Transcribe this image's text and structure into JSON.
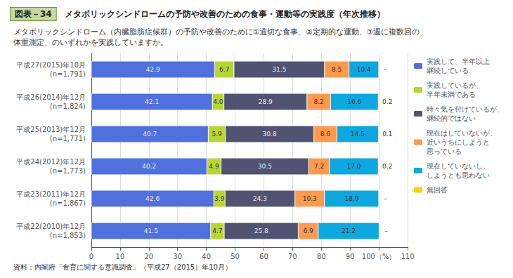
{
  "chart_data": {
    "type": "bar",
    "orientation": "horizontal",
    "stacked": true,
    "title_label": "図表－34",
    "title": "メタボリックシンドロームの予防や改善のための食事・運動等の実践度（年次推移）",
    "subtitle": [
      "メタボリックシンドローム（内臓脂肪症候群）の予防や改善のために①適切な食事、②定期的な運動、③週に複数回の",
      "体重測定、のいずれかを実践していますか。"
    ],
    "source": "資料：内閣府「食育に関する意識調査」（平成27（2015）年10月）",
    "categories": [
      "平成27(2015)年10月\n(n=1,791)",
      "平成26(2014)年12月\n(n=1,824)",
      "平成25(2013)年12月\n(n=1,771)",
      "平成24(2012)年12月\n(n=1,773)",
      "平成23(2011)年12月\n(n=1,867)",
      "平成22(2010)年12月\n(n=1,853)"
    ],
    "series": [
      {
        "name": "実践して、半年以上\n継続している",
        "values": [
          42.9,
          42.1,
          40.7,
          40.2,
          42.6,
          41.5
        ]
      },
      {
        "name": "実践しているが、\n半年未満である",
        "values": [
          6.7,
          4.0,
          5.9,
          4.9,
          3.9,
          4.7
        ],
        "value_labels": [
          "6.7",
          "4.0",
          "5.9",
          "4.9",
          "3.9",
          "4.7"
        ]
      },
      {
        "name": "時々気を付けているが、\n継続的ではない",
        "values": [
          31.5,
          28.9,
          30.8,
          30.5,
          24.3,
          25.8
        ]
      },
      {
        "name": "現在はしていないが、\n近いうちにしようと\n思っている",
        "values": [
          8.5,
          8.2,
          8.0,
          7.2,
          10.3,
          6.9
        ],
        "value_labels": [
          "8.5",
          "8.2",
          "8.0",
          "7.2",
          "10.3",
          "6.9"
        ]
      },
      {
        "name": "現在していないし、\nしようとも思わない",
        "values": [
          10.4,
          16.6,
          14.5,
          17.0,
          18.9,
          21.2
        ],
        "value_labels": [
          "10.4",
          "16.6",
          "14.5",
          "17.0",
          "18.9",
          "21.2"
        ]
      },
      {
        "name": "無回答",
        "values": [
          0,
          0.2,
          0.1,
          0.2,
          0,
          0
        ],
        "value_labels": [
          "－",
          "0.2",
          "0.1",
          "0.2",
          "－",
          "－"
        ]
      }
    ],
    "xlim": [
      0,
      110
    ],
    "xticks": [
      0,
      10,
      20,
      30,
      40,
      50,
      60,
      70,
      80,
      90,
      {
        "value": 100,
        "label": "100（%）"
      },
      110
    ],
    "grid": true,
    "legend": "right",
    "data_labels": true
  }
}
